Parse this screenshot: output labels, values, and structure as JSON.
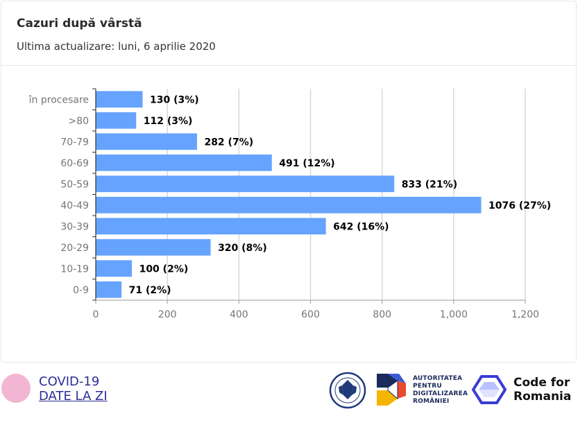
{
  "header": {
    "title": "Cazuri după vârstă",
    "subtitle": "Ultima actualizare: luni, 6 aprilie 2020"
  },
  "chart_data": {
    "type": "bar",
    "orientation": "horizontal",
    "categories": [
      "în procesare",
      ">80",
      "70-79",
      "60-69",
      "50-59",
      "40-49",
      "30-39",
      "20-29",
      "10-19",
      "0-9"
    ],
    "values": [
      130,
      112,
      282,
      491,
      833,
      1076,
      642,
      320,
      100,
      71
    ],
    "data_labels": [
      "130 (3%)",
      "112 (3%)",
      "282 (7%)",
      "491 (12%)",
      "833 (21%)",
      "1076 (27%)",
      "642 (16%)",
      "320 (8%)",
      "100 (2%)",
      "71 (2%)"
    ],
    "xlim": [
      0,
      1200
    ],
    "xticks": [
      0,
      200,
      400,
      600,
      800,
      1000,
      1200
    ],
    "xtick_labels": [
      "0",
      "200",
      "400",
      "600",
      "800",
      "1,000",
      "1,200"
    ],
    "grid": "vertical",
    "bar_color": "#66a3ff"
  },
  "footer": {
    "brand_line1": "COVID-19",
    "brand_line2": "DATE LA ZI",
    "adr_text": [
      "AUTORITATEA",
      "PENTRU",
      "DIGITALIZAREA",
      "ROMÂNIEI"
    ],
    "cfr_line1": "Code for",
    "cfr_line2": "Romania",
    "seal_icon": "government-seal-icon",
    "colors": {
      "brand_pink": "#f3b6d2",
      "brand_blue": "#2c2c9a",
      "cfr_blue": "#3b3bd6"
    }
  }
}
